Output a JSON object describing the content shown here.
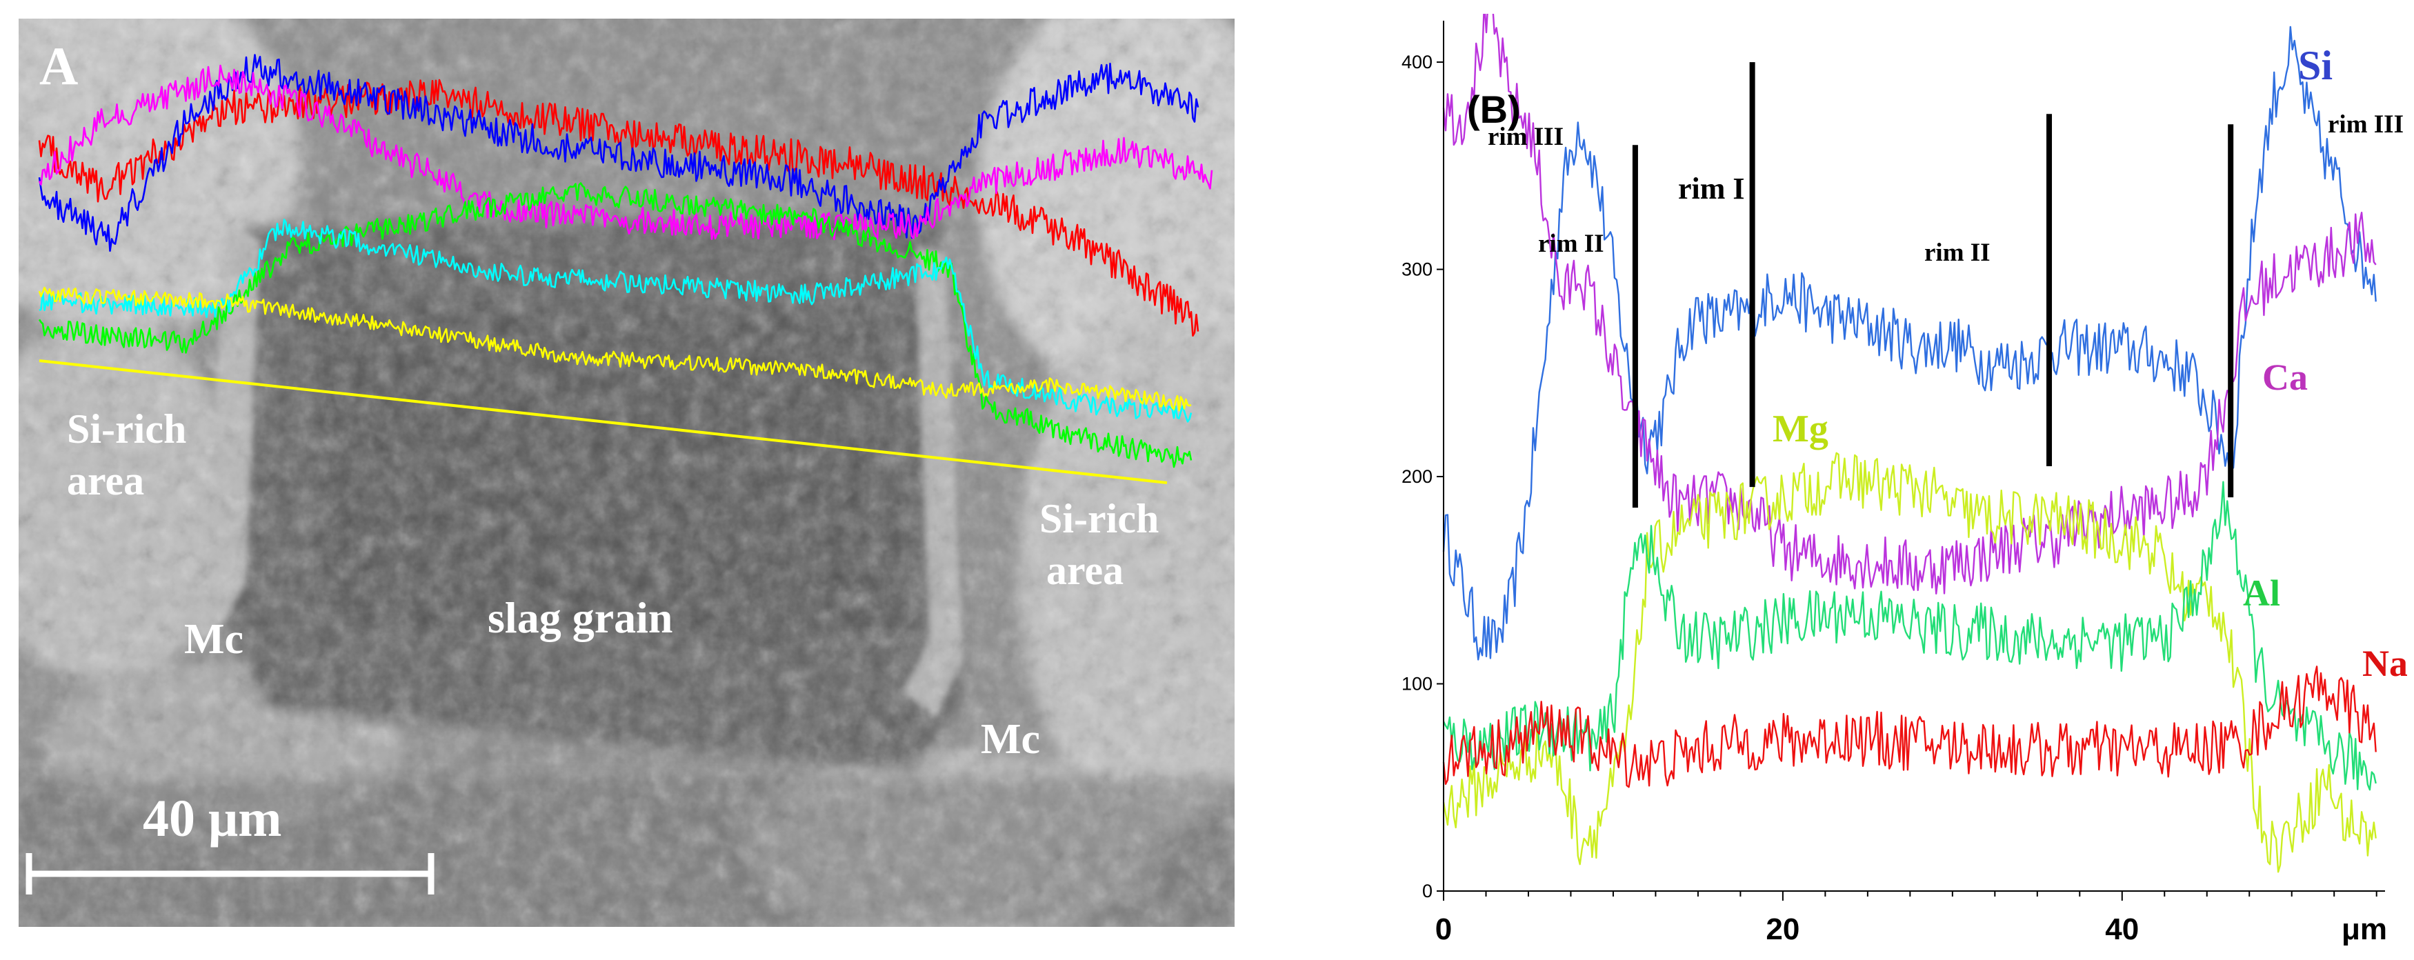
{
  "panel_a": {
    "label": "A",
    "annotations": {
      "si_rich_left": [
        "Si-rich",
        "area"
      ],
      "si_rich_right": [
        "Si-rich",
        "area"
      ],
      "mc_left": "Mc",
      "mc_right": "Mc",
      "slag_grain": "slag grain",
      "scale_bar": "40 μm"
    },
    "colors": {
      "Si": "#0000ff",
      "Na": "#ff0000",
      "Ca": "#ff00ff",
      "Mg": "#00ff00",
      "Al": "#00ffff",
      "Fe": "#ffff00",
      "scan_line": "#ffff00"
    }
  },
  "chart_data": {
    "type": "line",
    "label": "(B)",
    "xlabel": "μm",
    "ylabel": "",
    "xlim": [
      0,
      55.5
    ],
    "ylim": [
      0,
      420
    ],
    "x_ticks": [
      0,
      20,
      40
    ],
    "x_tick_labels": [
      "0",
      "20",
      "40"
    ],
    "y_ticks": [
      0,
      100,
      200,
      300,
      400
    ],
    "y_tick_labels": [
      "0",
      "100",
      "200",
      "300",
      "400"
    ],
    "zones": [
      {
        "label": "rim III",
        "x": 11.3
      },
      {
        "label": "rim II",
        "x": 18.2
      },
      {
        "label": "rim I",
        "x": null
      },
      {
        "label": "rim II",
        "x": 35.7
      },
      {
        "label": "rim III",
        "x": 46.4
      }
    ],
    "series": [
      {
        "name": "Si",
        "color": "#2f6fe0",
        "x": [
          0,
          1,
          2,
          3,
          4,
          5,
          6,
          7,
          8,
          9,
          10,
          11,
          12,
          13,
          14,
          15,
          16,
          18,
          20,
          22,
          24,
          26,
          28,
          30,
          32,
          34,
          36,
          38,
          40,
          42,
          44,
          45,
          46,
          46.5,
          47,
          48,
          49,
          50,
          51,
          52,
          53,
          54,
          55
        ],
        "y": [
          175,
          150,
          125,
          118,
          140,
          190,
          260,
          340,
          372,
          345,
          300,
          245,
          215,
          230,
          265,
          280,
          275,
          280,
          290,
          280,
          275,
          270,
          262,
          265,
          255,
          255,
          262,
          262,
          262,
          258,
          250,
          235,
          215,
          205,
          260,
          340,
          385,
          405,
          375,
          355,
          335,
          305,
          295
        ]
      },
      {
        "name": "Ca",
        "color": "#bb33dd",
        "x": [
          0,
          1,
          2,
          2.5,
          3,
          4,
          5,
          6,
          7,
          8,
          9,
          10,
          11,
          12,
          13,
          14,
          16,
          18,
          20,
          22,
          24,
          26,
          28,
          30,
          32,
          34,
          36,
          38,
          40,
          42,
          44,
          45,
          46,
          46.5,
          47,
          48,
          50,
          52,
          53,
          54,
          55
        ],
        "y": [
          380,
          370,
          400,
          420,
          415,
          380,
          370,
          330,
          285,
          300,
          280,
          255,
          225,
          215,
          195,
          185,
          190,
          185,
          165,
          160,
          160,
          158,
          155,
          158,
          162,
          168,
          170,
          178,
          182,
          185,
          190,
          205,
          235,
          250,
          275,
          290,
          300,
          305,
          310,
          315,
          305
        ]
      },
      {
        "name": "Mg",
        "color": "#ccee22",
        "x": [
          0,
          2,
          4,
          6,
          7,
          8,
          9,
          10,
          11,
          11.5,
          12,
          14,
          16,
          18,
          20,
          22,
          24,
          26,
          28,
          30,
          32,
          34,
          36,
          38,
          40,
          42,
          43,
          44,
          45,
          46,
          47,
          48,
          49,
          50,
          51,
          52,
          53,
          54,
          55
        ],
        "y": [
          40,
          50,
          60,
          70,
          55,
          25,
          30,
          50,
          80,
          120,
          160,
          175,
          180,
          185,
          190,
          195,
          200,
          195,
          195,
          185,
          180,
          180,
          180,
          175,
          170,
          165,
          150,
          140,
          145,
          130,
          90,
          40,
          20,
          30,
          40,
          55,
          35,
          30,
          25
        ]
      },
      {
        "name": "Al",
        "color": "#22dd77",
        "x": [
          0,
          2,
          4,
          6,
          8,
          9,
          10,
          10.5,
          11,
          11.5,
          12,
          13,
          14,
          16,
          18,
          20,
          22,
          24,
          26,
          28,
          30,
          32,
          34,
          36,
          38,
          40,
          42,
          43,
          44,
          45,
          45.5,
          46,
          46.5,
          47,
          48,
          49,
          50,
          51,
          52,
          53,
          54,
          55
        ],
        "y": [
          75,
          70,
          75,
          80,
          75,
          70,
          85,
          120,
          150,
          175,
          170,
          140,
          125,
          120,
          125,
          130,
          132,
          135,
          132,
          128,
          125,
          125,
          122,
          120,
          122,
          120,
          122,
          125,
          140,
          155,
          175,
          185,
          180,
          150,
          110,
          90,
          80,
          75,
          70,
          65,
          60,
          55
        ]
      },
      {
        "name": "Na",
        "color": "#ee1111",
        "x": [
          0,
          2,
          4,
          6,
          8,
          10,
          12,
          14,
          16,
          18,
          20,
          22,
          24,
          26,
          28,
          30,
          32,
          34,
          36,
          38,
          40,
          42,
          44,
          46,
          47,
          48,
          49,
          50,
          51,
          52,
          53,
          54,
          55
        ],
        "y": [
          65,
          68,
          70,
          80,
          75,
          65,
          62,
          65,
          70,
          72,
          72,
          73,
          75,
          72,
          72,
          70,
          70,
          68,
          68,
          68,
          68,
          68,
          68,
          70,
          72,
          78,
          85,
          90,
          95,
          100,
          90,
          85,
          70
        ]
      }
    ],
    "legend_labels": [
      {
        "name": "Si",
        "color": "#3344cc"
      },
      {
        "name": "Ca",
        "color": "#bb33bb"
      },
      {
        "name": "Mg",
        "color": "#bbdd11"
      },
      {
        "name": "Al",
        "color": "#22cc44"
      },
      {
        "name": "Na",
        "color": "#dd1111"
      }
    ]
  }
}
